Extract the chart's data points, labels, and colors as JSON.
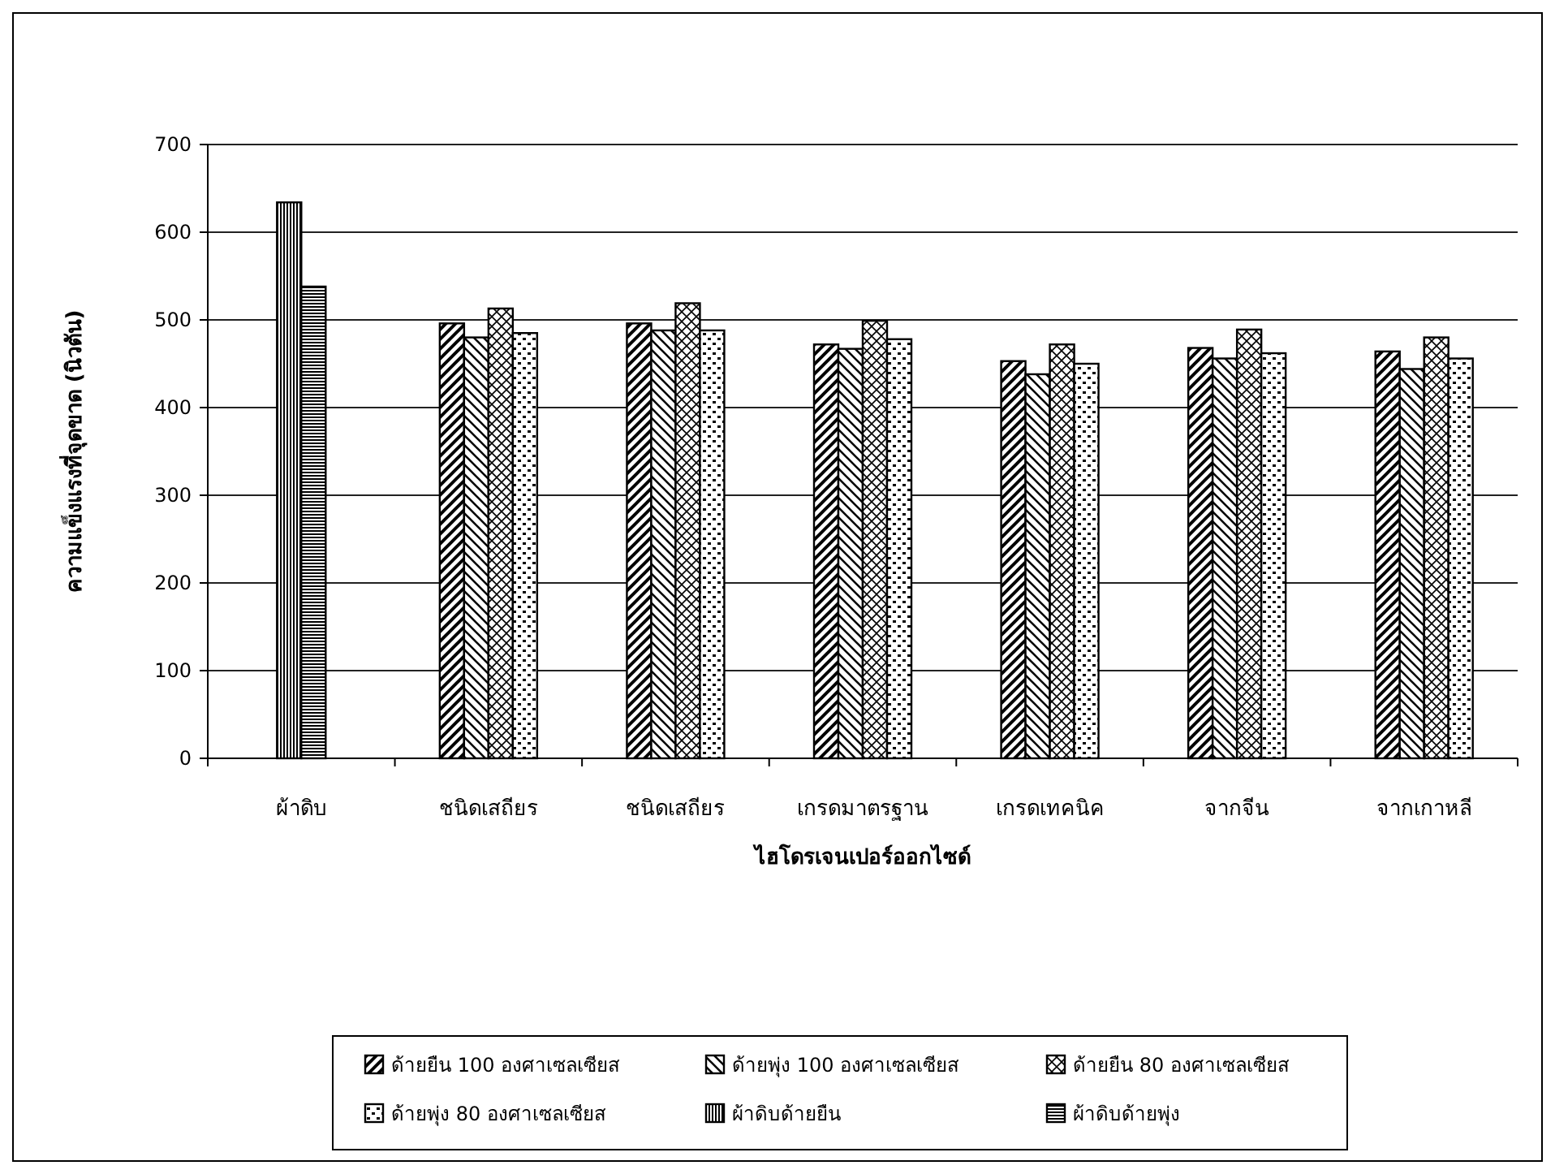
{
  "chart_data": {
    "type": "bar",
    "ylabel": "ความแข็งแรงที่จุดขาด (นิวตัน)",
    "xlabel": "ไฮโดรเจนเปอร์ออกไซด์",
    "categories": [
      "ผ้าดิบ",
      "ชนิดเสถียร",
      "ชนิดเสถียร",
      "เกรดมาตรฐาน",
      "เกรดเทคนิค",
      "จากจีน",
      "จากเกาหลี"
    ],
    "series": [
      {
        "name": "ด้ายยืน 100 องศาเซลเซียส",
        "color": "#000000",
        "values": [
          null,
          496,
          496,
          472,
          453,
          468,
          464
        ]
      },
      {
        "name": "ด้ายพุ่ง 100 องศาเซลเซียส",
        "color": "#000000",
        "values": [
          null,
          480,
          488,
          467,
          438,
          456,
          444
        ]
      },
      {
        "name": "ด้ายยืน 80 องศาเซลเซียส",
        "color": "#000000",
        "values": [
          null,
          513,
          519,
          499,
          472,
          489,
          480
        ]
      },
      {
        "name": "ด้ายพุ่ง 80 องศาเซลเซียส",
        "color": "#000000",
        "values": [
          null,
          485,
          488,
          478,
          450,
          462,
          456
        ]
      },
      {
        "name": "ผ้าดิบด้ายยืน",
        "color": "#000000",
        "values": [
          634,
          null,
          null,
          null,
          null,
          null,
          null
        ]
      },
      {
        "name": "ผ้าดิบด้ายพุ่ง",
        "color": "#000000",
        "values": [
          538,
          null,
          null,
          null,
          null,
          null,
          null
        ]
      }
    ],
    "ylim": [
      0,
      700
    ],
    "yticks": [
      0,
      100,
      200,
      300,
      400,
      500,
      600,
      700
    ],
    "grid": "y",
    "legend": "bottom"
  }
}
